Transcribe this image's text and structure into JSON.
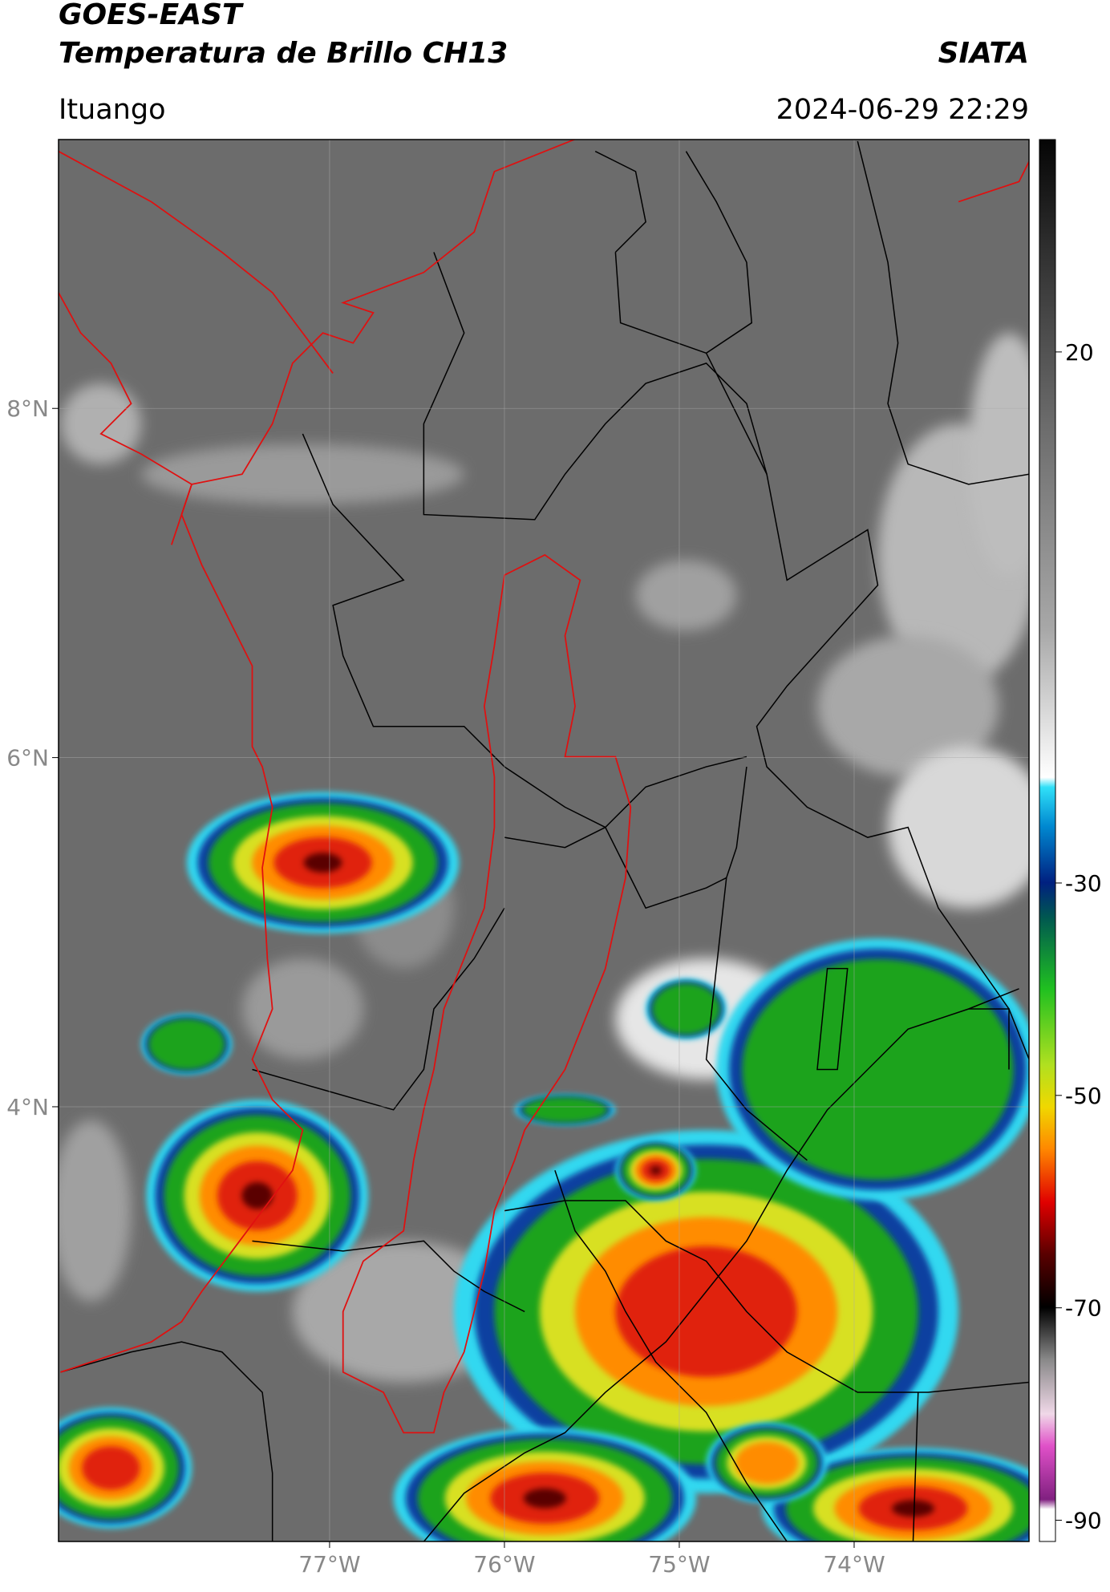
{
  "chart_data": {
    "type": "map",
    "title": "GOES-EAST",
    "subtitle": "Temperatura de Brillo CH13",
    "source": "SIATA",
    "region": "Ituango",
    "datetime": "2024-06-29 22:29",
    "xlim": [
      -78.55,
      -73.0
    ],
    "ylim": [
      1.51,
      9.54
    ],
    "xticks": [
      {
        "value": -77,
        "label": "77°W"
      },
      {
        "value": -76,
        "label": "76°W"
      },
      {
        "value": -75,
        "label": "75°W"
      },
      {
        "value": -74,
        "label": "74°W"
      }
    ],
    "yticks": [
      {
        "value": 8,
        "label": "8°N"
      },
      {
        "value": 6,
        "label": "6°N"
      },
      {
        "value": 4,
        "label": "4°N"
      }
    ],
    "grid": true,
    "colorbar": {
      "lim": [
        -92,
        40
      ],
      "ticks": [
        20,
        -30,
        -50,
        -70,
        -90
      ]
    }
  }
}
